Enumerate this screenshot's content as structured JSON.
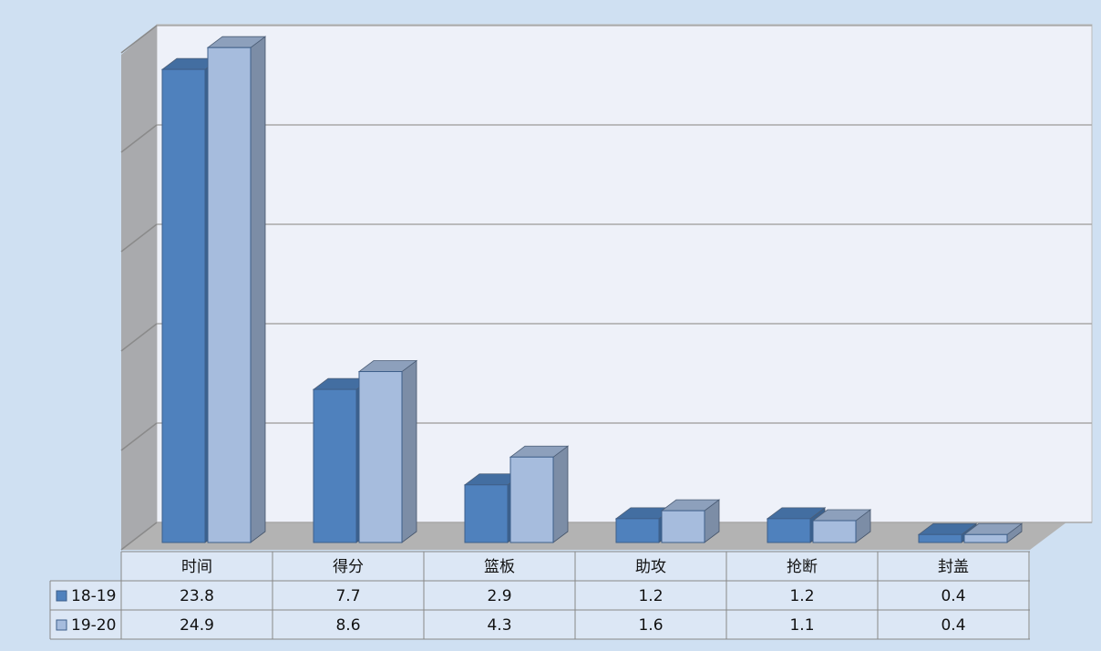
{
  "chart_data": {
    "type": "bar",
    "categories": [
      "时间",
      "得分",
      "篮板",
      "助攻",
      "抢断",
      "封盖"
    ],
    "series": [
      {
        "name": "18-19",
        "color": "#4f81bd",
        "values": [
          23.8,
          7.7,
          2.9,
          1.2,
          1.2,
          0.4
        ]
      },
      {
        "name": "19-20",
        "color": "#a6bcdd",
        "values": [
          24.9,
          8.6,
          4.3,
          1.6,
          1.1,
          0.4
        ]
      }
    ],
    "ylim": [
      0,
      25
    ],
    "yticks": [
      0,
      5,
      10,
      15,
      20,
      25
    ],
    "grid": true,
    "data_table": true
  }
}
